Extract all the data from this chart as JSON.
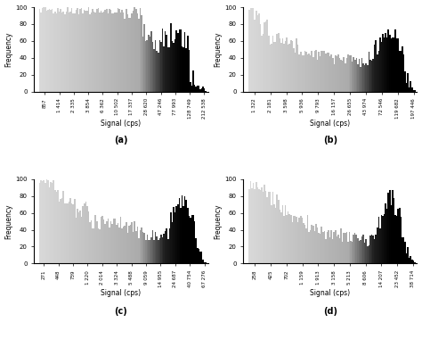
{
  "panels": [
    {
      "label": "(a)",
      "xlabel_ticks": [
        "857",
        "1 414",
        "2 335",
        "3 854",
        "6 362",
        "10 502",
        "17 337",
        "28 620",
        "47 246",
        "77 993",
        "128 749",
        "212 538"
      ],
      "tick_vals": [
        857,
        1414,
        2335,
        3854,
        6362,
        10502,
        17337,
        28620,
        47246,
        77993,
        128749,
        212538
      ],
      "xmin": 700,
      "xmax": 230000,
      "ylim": [
        0,
        100
      ],
      "profile": "a"
    },
    {
      "label": "(b)",
      "xlabel_ticks": [
        "1 322",
        "2 181",
        "3 598",
        "5 936",
        "9 793",
        "16 157",
        "26 655",
        "43 974",
        "72 546",
        "119 682",
        "197 446"
      ],
      "tick_vals": [
        1322,
        2181,
        3598,
        5936,
        9793,
        16157,
        26655,
        43974,
        72546,
        119682,
        197446
      ],
      "xmin": 1100,
      "xmax": 210000,
      "ylim": [
        0,
        100
      ],
      "profile": "b"
    },
    {
      "label": "(c)",
      "xlabel_ticks": [
        "271",
        "448",
        "739",
        "1 220",
        "2 014",
        "3 324",
        "5 488",
        "9 059",
        "14 955",
        "24 687",
        "40 754",
        "67 276"
      ],
      "tick_vals": [
        271,
        448,
        739,
        1220,
        2014,
        3324,
        5488,
        9059,
        14955,
        24687,
        40754,
        67276
      ],
      "xmin": 230,
      "xmax": 72000,
      "ylim": [
        0,
        100
      ],
      "profile": "c"
    },
    {
      "label": "(d)",
      "xlabel_ticks": [
        "258",
        "425",
        "702",
        "1 159",
        "1 913",
        "3 158",
        "5 213",
        "8 606",
        "14 207",
        "23 452",
        "38 714"
      ],
      "tick_vals": [
        258,
        425,
        702,
        1159,
        1913,
        3158,
        5213,
        8606,
        14207,
        23452,
        38714
      ],
      "xmin": 210,
      "xmax": 42000,
      "ylim": [
        0,
        100
      ],
      "profile": "d"
    }
  ],
  "ylabel": "Frequency",
  "xlabel": "Signal (cps)"
}
